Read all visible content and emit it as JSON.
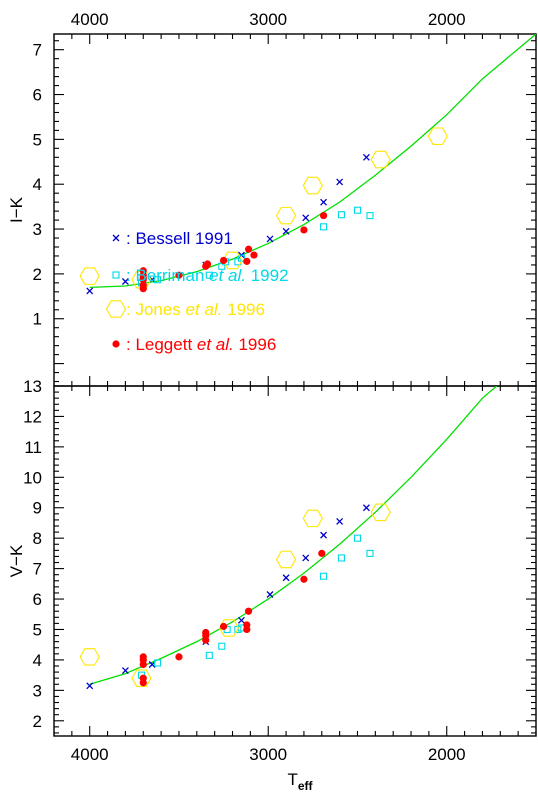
{
  "chart_data": {
    "type": "scatter",
    "x_axis": {
      "label_main": "T",
      "label_sub": "eff",
      "range": [
        4200,
        1500
      ],
      "ticks": [
        "4000",
        "3000",
        "2000"
      ],
      "tick_values": [
        4000,
        3000,
        2000
      ],
      "minor_step": 100
    },
    "legend": {
      "placement": "inside top panel, lower-left",
      "entries": [
        {
          "series_index": 0,
          "label_parts": [
            {
              "text": ": Bessell 1991",
              "italic": false
            }
          ],
          "color": "#0000cc"
        },
        {
          "series_index": 1,
          "label_parts": [
            {
              "text": ": Berriman ",
              "italic": false
            },
            {
              "text": "et al.",
              "italic": true
            },
            {
              "text": " 1992",
              "italic": false
            }
          ],
          "color": "#00d8e8"
        },
        {
          "series_index": 2,
          "label_parts": [
            {
              "text": ": Jones ",
              "italic": false
            },
            {
              "text": "et al.",
              "italic": true
            },
            {
              "text": " 1996",
              "italic": false
            }
          ],
          "color": "#ffe600"
        },
        {
          "series_index": 3,
          "label_parts": [
            {
              "text": ": Leggett ",
              "italic": false
            },
            {
              "text": "et al.",
              "italic": true
            },
            {
              "text": " 1996",
              "italic": false
            }
          ],
          "color": "#ff0000"
        }
      ]
    },
    "series_styles": [
      {
        "marker": "cross",
        "color": "#0000cc"
      },
      {
        "marker": "square",
        "color": "#00d8e8"
      },
      {
        "marker": "hexagon",
        "color": "#ffe600"
      },
      {
        "marker": "dot",
        "color": "#ff0000"
      }
    ],
    "fit_color": "#00e000",
    "panels": [
      {
        "id": "top",
        "ylabel": "I−K",
        "ylim": [
          7.35,
          -0.5
        ],
        "yticks": [
          "1",
          "2",
          "3",
          "4",
          "5",
          "6",
          "7"
        ],
        "ytick_values": [
          1,
          2,
          3,
          4,
          5,
          6,
          7
        ],
        "show_top_axis_labels": true,
        "fit_curve": [
          [
            4000,
            1.7
          ],
          [
            3800,
            1.73
          ],
          [
            3600,
            1.85
          ],
          [
            3400,
            2.05
          ],
          [
            3200,
            2.33
          ],
          [
            3000,
            2.68
          ],
          [
            2800,
            3.1
          ],
          [
            2600,
            3.6
          ],
          [
            2400,
            4.2
          ],
          [
            2200,
            4.85
          ],
          [
            2000,
            5.55
          ],
          [
            1800,
            6.35
          ],
          [
            1500,
            7.35
          ]
        ],
        "series": [
          {
            "points": [
              [
                4000,
                1.62
              ],
              [
                3800,
                1.83
              ],
              [
                3650,
                1.87
              ],
              [
                3350,
                2.2
              ],
              [
                3150,
                2.42
              ],
              [
                2990,
                2.78
              ],
              [
                2900,
                2.95
              ],
              [
                2790,
                3.25
              ],
              [
                2690,
                3.6
              ],
              [
                2600,
                4.05
              ],
              [
                2450,
                4.6
              ]
            ]
          },
          {
            "points": [
              [
                3710,
                1.8
              ],
              [
                3620,
                1.87
              ],
              [
                3330,
                1.97
              ],
              [
                3260,
                2.17
              ],
              [
                3240,
                2.27
              ],
              [
                3170,
                2.27
              ],
              [
                3150,
                2.35
              ],
              [
                2690,
                3.05
              ],
              [
                2590,
                3.32
              ],
              [
                2500,
                3.42
              ],
              [
                2430,
                3.3
              ]
            ]
          },
          {
            "points": [
              [
                4000,
                1.95
              ],
              [
                3710,
                1.87
              ],
              [
                3200,
                2.3
              ],
              [
                2900,
                3.3
              ],
              [
                2750,
                3.97
              ],
              [
                2370,
                4.55
              ],
              [
                2050,
                5.07
              ]
            ]
          },
          {
            "points": [
              [
                3700,
                1.67
              ],
              [
                3700,
                1.75
              ],
              [
                3700,
                1.87
              ],
              [
                3700,
                1.92
              ],
              [
                3700,
                1.97
              ],
              [
                3700,
                2.07
              ],
              [
                3500,
                1.97
              ],
              [
                3350,
                2.17
              ],
              [
                3340,
                2.22
              ],
              [
                3250,
                2.3
              ],
              [
                3120,
                2.28
              ],
              [
                3110,
                2.55
              ],
              [
                3080,
                2.42
              ],
              [
                2800,
                2.98
              ],
              [
                2690,
                3.3
              ]
            ]
          }
        ]
      },
      {
        "id": "bottom",
        "ylabel": "V−K",
        "ylim": [
          13,
          1.5
        ],
        "yticks": [
          "2",
          "3",
          "4",
          "5",
          "6",
          "7",
          "8",
          "9",
          "10",
          "11",
          "12",
          "13"
        ],
        "ytick_values": [
          2,
          3,
          4,
          5,
          6,
          7,
          8,
          9,
          10,
          11,
          12,
          13
        ],
        "show_bottom_axis_labels": true,
        "fit_curve": [
          [
            4000,
            3.2
          ],
          [
            3800,
            3.55
          ],
          [
            3600,
            4.05
          ],
          [
            3400,
            4.6
          ],
          [
            3200,
            5.25
          ],
          [
            3000,
            6.0
          ],
          [
            2800,
            6.85
          ],
          [
            2600,
            7.8
          ],
          [
            2400,
            8.85
          ],
          [
            2200,
            10.0
          ],
          [
            2000,
            11.25
          ],
          [
            1800,
            12.6
          ],
          [
            1720,
            13.0
          ]
        ],
        "series": [
          {
            "points": [
              [
                4000,
                3.15
              ],
              [
                3800,
                3.65
              ],
              [
                3650,
                3.85
              ],
              [
                3350,
                4.6
              ],
              [
                3150,
                5.3
              ],
              [
                2990,
                6.15
              ],
              [
                2900,
                6.7
              ],
              [
                2790,
                7.35
              ],
              [
                2690,
                8.1
              ],
              [
                2600,
                8.55
              ],
              [
                2450,
                9.0
              ]
            ]
          },
          {
            "points": [
              [
                3710,
                3.5
              ],
              [
                3620,
                3.9
              ],
              [
                3330,
                4.15
              ],
              [
                3260,
                4.45
              ],
              [
                3230,
                5.0
              ],
              [
                3170,
                5.0
              ],
              [
                3150,
                5.05
              ],
              [
                2690,
                6.75
              ],
              [
                2590,
                7.35
              ],
              [
                2500,
                8.0
              ],
              [
                2430,
                7.5
              ]
            ]
          },
          {
            "points": [
              [
                4000,
                4.1
              ],
              [
                3710,
                3.4
              ],
              [
                3220,
                5.05
              ],
              [
                2900,
                7.3
              ],
              [
                2750,
                8.65
              ],
              [
                2370,
                8.85
              ]
            ]
          },
          {
            "points": [
              [
                3700,
                3.25
              ],
              [
                3700,
                3.4
              ],
              [
                3700,
                3.85
              ],
              [
                3700,
                4.0
              ],
              [
                3700,
                4.1
              ],
              [
                3500,
                4.1
              ],
              [
                3350,
                4.65
              ],
              [
                3350,
                4.8
              ],
              [
                3350,
                4.9
              ],
              [
                3250,
                5.1
              ],
              [
                3120,
                5.0
              ],
              [
                3120,
                5.15
              ],
              [
                3110,
                5.6
              ],
              [
                2800,
                6.65
              ],
              [
                2700,
                7.5
              ]
            ]
          }
        ]
      }
    ]
  }
}
